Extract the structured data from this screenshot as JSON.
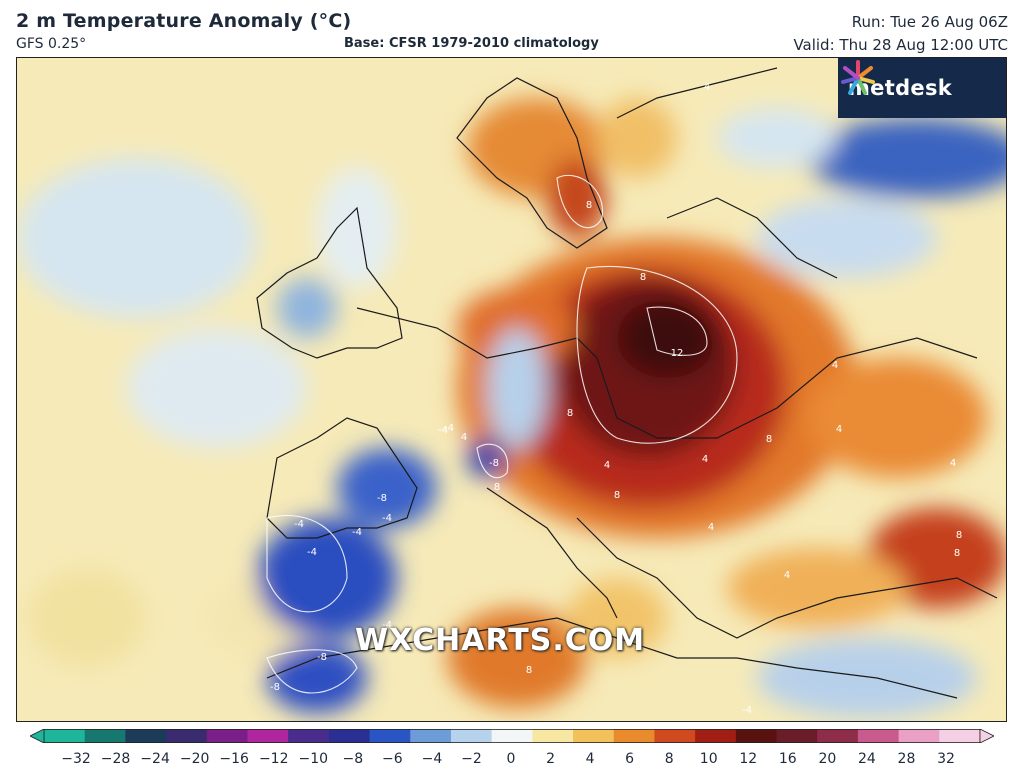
{
  "header": {
    "title": "2 m Temperature Anomaly (°C)",
    "model": "GFS 0.25°",
    "base": "Base: CFSR 1979-2010 climatology",
    "run": "Run: Tue 26 Aug 06Z",
    "valid": "Valid: Thu 28 Aug 12:00 UTC"
  },
  "brand": {
    "logo_text": "metdesk",
    "watermark": "WXCHARTS.COM"
  },
  "map": {
    "contour_labels": [
      "8",
      "12",
      "8",
      "4",
      "8",
      "8",
      "4",
      "4",
      "8",
      "4",
      "4",
      "8",
      "-4",
      "-4",
      "-4",
      "-4",
      "-8",
      "-4",
      "-8",
      "-8",
      "-4",
      "-8",
      "-4",
      "8",
      "4",
      "-4",
      "4",
      "4",
      "8",
      "8",
      "4"
    ]
  },
  "legend": {
    "ticks": [
      "−32",
      "−28",
      "−24",
      "−20",
      "−16",
      "−12",
      "−10",
      "−8",
      "−6",
      "−4",
      "−2",
      "0",
      "2",
      "4",
      "6",
      "8",
      "10",
      "12",
      "16",
      "20",
      "24",
      "28",
      "32"
    ],
    "colors": [
      "#1fb59a",
      "#16786f",
      "#1c3b58",
      "#3a2a6e",
      "#7a1f8a",
      "#b0269e",
      "#4a2c8c",
      "#2a2f94",
      "#2a55c4",
      "#6d9cd8",
      "#b7d2ec",
      "#f3f6f6",
      "#f8e7a3",
      "#f2c15a",
      "#e98a2c",
      "#cf4a1e",
      "#a01e14",
      "#5a1210",
      "#6a1c28",
      "#8e2c4a",
      "#c85a8e",
      "#e9a0c4",
      "#f5cfe3"
    ]
  },
  "colors": {
    "sea_pale": "#f6efc4",
    "sea_blue": "#cfe1ef",
    "heat_core": "#3e0e0e",
    "cold_core": "#1e3ea8"
  }
}
